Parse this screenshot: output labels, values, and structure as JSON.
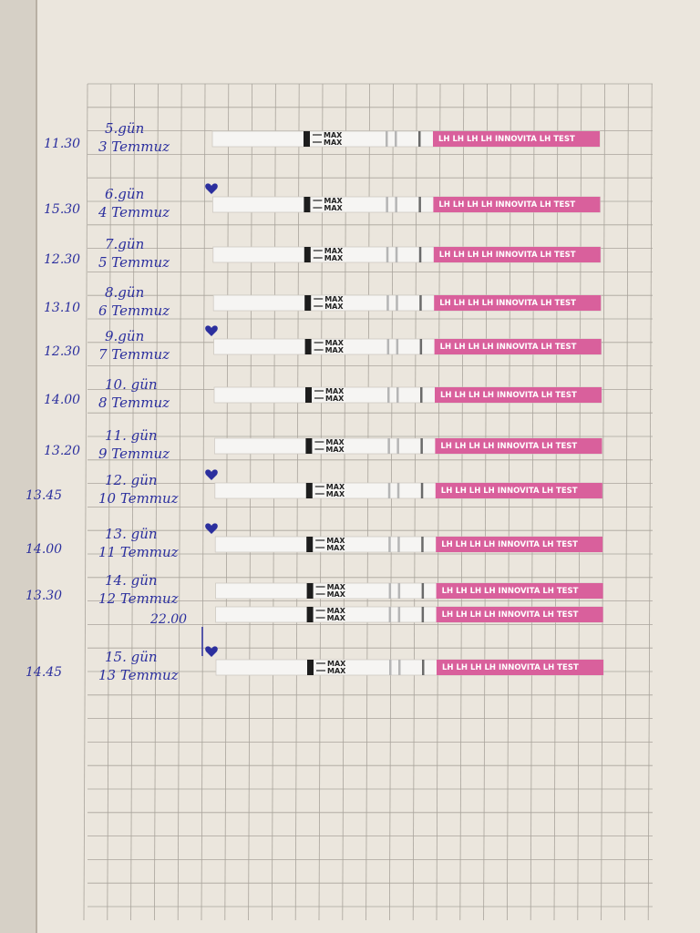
{
  "strip": {
    "max_label": "MAX",
    "brand": "LH LH LH LH INNOVITA LH TEST"
  },
  "entries": [
    {
      "time": "11.30",
      "day": "5.gün",
      "date": "3 Temmuz",
      "heart": false
    },
    {
      "time": "15.30",
      "day": "6.gün",
      "date": "4 Temmuz",
      "heart": true
    },
    {
      "time": "12.30",
      "day": "7.gün",
      "date": "5 Temmuz",
      "heart": false
    },
    {
      "time": "13.10",
      "day": "8.gün",
      "date": "6 Temmuz",
      "heart": false
    },
    {
      "time": "12.30",
      "day": "9.gün",
      "date": "7 Temmuz",
      "heart": true
    },
    {
      "time": "14.00",
      "day": "10. gün",
      "date": "8 Temmuz",
      "heart": false
    },
    {
      "time": "13.20",
      "day": "11. gün",
      "date": "9 Temmuz",
      "heart": false
    },
    {
      "time": "13.45",
      "day": "12. gün",
      "date": "10 Temmuz",
      "heart": true
    },
    {
      "time": "14.00",
      "day": "13. gün",
      "date": "11 Temmuz",
      "heart": true
    },
    {
      "time": "13.30",
      "day": "14. gün",
      "date": "12 Temmuz",
      "heart": false,
      "extra_time": "22.00"
    },
    {
      "time": "14.45",
      "day": "15. gün",
      "date": "13 Temmuz",
      "heart": true
    }
  ]
}
